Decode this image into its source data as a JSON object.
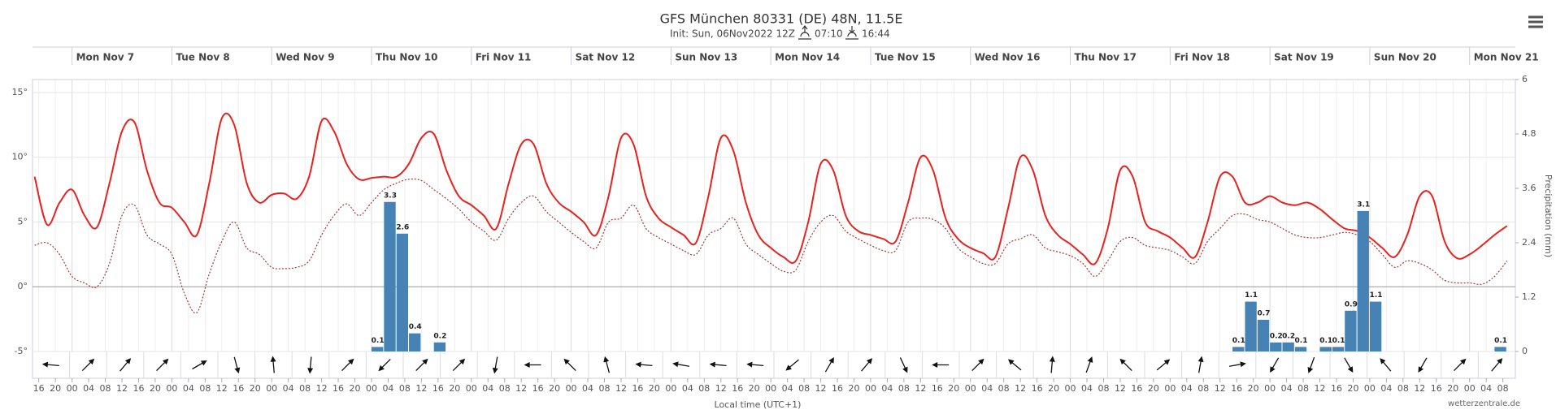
{
  "chart_data": {
    "type": "line",
    "title": "GFS München 80331 (DE) 48N, 11.5E",
    "subtitle": "Init: Sun, 06Nov2022 12Z",
    "sunrise": "07:10",
    "sunset": "16:44",
    "xlabel": "Local time (UTC+1)",
    "y2label": "Precipitation (mm)",
    "credit": "wetterzentrale.de",
    "xlim": [
      "2022-11-06T14:30",
      "2022-11-21T11:00"
    ],
    "ylim": [
      -5,
      16
    ],
    "yticks": [
      {
        "value": -5,
        "label": "-5°"
      },
      {
        "value": 0,
        "label": "0°"
      },
      {
        "value": 5,
        "label": "5°"
      },
      {
        "value": 10,
        "label": "10°"
      },
      {
        "value": 15,
        "label": "15°"
      }
    ],
    "y2lim": [
      0,
      6
    ],
    "y2ticks": [
      0,
      1.2,
      2.4,
      3.6,
      4.8,
      6
    ],
    "grid": true,
    "day_ticks": [
      {
        "value": "2022-11-07T00:00",
        "label": "Mon Nov 7"
      },
      {
        "value": "2022-11-08T00:00",
        "label": "Tue Nov 8"
      },
      {
        "value": "2022-11-09T00:00",
        "label": "Wed Nov 9"
      },
      {
        "value": "2022-11-10T00:00",
        "label": "Thu Nov 10"
      },
      {
        "value": "2022-11-11T00:00",
        "label": "Fri Nov 11"
      },
      {
        "value": "2022-11-12T00:00",
        "label": "Sat Nov 12"
      },
      {
        "value": "2022-11-13T00:00",
        "label": "Sun Nov 13"
      },
      {
        "value": "2022-11-14T00:00",
        "label": "Mon Nov 14"
      },
      {
        "value": "2022-11-15T00:00",
        "label": "Tue Nov 15"
      },
      {
        "value": "2022-11-16T00:00",
        "label": "Wed Nov 16"
      },
      {
        "value": "2022-11-17T00:00",
        "label": "Thu Nov 17"
      },
      {
        "value": "2022-11-18T00:00",
        "label": "Fri Nov 18"
      },
      {
        "value": "2022-11-19T00:00",
        "label": "Sat Nov 19"
      },
      {
        "value": "2022-11-20T00:00",
        "label": "Sun Nov 20"
      },
      {
        "value": "2022-11-21T00:00",
        "label": "Mon Nov 21"
      }
    ],
    "xticks": [
      {
        "value": "2022-11-06T16:00",
        "label": "16"
      },
      {
        "value": "2022-11-06T20:00",
        "label": "20"
      },
      {
        "value": "2022-11-07T00:00",
        "label": "00"
      },
      {
        "value": "2022-11-07T04:00",
        "label": "04"
      },
      {
        "value": "2022-11-07T08:00",
        "label": "08"
      },
      {
        "value": "2022-11-07T12:00",
        "label": "12"
      },
      {
        "value": "2022-11-07T16:00",
        "label": "16"
      },
      {
        "value": "2022-11-07T20:00",
        "label": "20"
      },
      {
        "value": "2022-11-08T00:00",
        "label": "00"
      },
      {
        "value": "2022-11-08T04:00",
        "label": "04"
      },
      {
        "value": "2022-11-08T08:00",
        "label": "08"
      },
      {
        "value": "2022-11-08T12:00",
        "label": "12"
      },
      {
        "value": "2022-11-08T16:00",
        "label": "16"
      },
      {
        "value": "2022-11-08T20:00",
        "label": "20"
      },
      {
        "value": "2022-11-09T00:00",
        "label": "00"
      },
      {
        "value": "2022-11-09T04:00",
        "label": "04"
      },
      {
        "value": "2022-11-09T08:00",
        "label": "08"
      },
      {
        "value": "2022-11-09T12:00",
        "label": "12"
      },
      {
        "value": "2022-11-09T16:00",
        "label": "16"
      },
      {
        "value": "2022-11-09T20:00",
        "label": "20"
      },
      {
        "value": "2022-11-10T00:00",
        "label": "00"
      },
      {
        "value": "2022-11-10T04:00",
        "label": "04"
      },
      {
        "value": "2022-11-10T08:00",
        "label": "08"
      },
      {
        "value": "2022-11-10T12:00",
        "label": "12"
      },
      {
        "value": "2022-11-10T16:00",
        "label": "16"
      },
      {
        "value": "2022-11-10T20:00",
        "label": "20"
      },
      {
        "value": "2022-11-11T00:00",
        "label": "00"
      },
      {
        "value": "2022-11-11T04:00",
        "label": "04"
      },
      {
        "value": "2022-11-11T08:00",
        "label": "08"
      },
      {
        "value": "2022-11-11T12:00",
        "label": "12"
      },
      {
        "value": "2022-11-11T16:00",
        "label": "16"
      },
      {
        "value": "2022-11-11T20:00",
        "label": "20"
      },
      {
        "value": "2022-11-12T00:00",
        "label": "00"
      },
      {
        "value": "2022-11-12T04:00",
        "label": "04"
      },
      {
        "value": "2022-11-12T08:00",
        "label": "08"
      },
      {
        "value": "2022-11-12T12:00",
        "label": "12"
      },
      {
        "value": "2022-11-12T16:00",
        "label": "16"
      },
      {
        "value": "2022-11-12T20:00",
        "label": "20"
      },
      {
        "value": "2022-11-13T00:00",
        "label": "00"
      },
      {
        "value": "2022-11-13T04:00",
        "label": "04"
      },
      {
        "value": "2022-11-13T08:00",
        "label": "08"
      },
      {
        "value": "2022-11-13T12:00",
        "label": "12"
      },
      {
        "value": "2022-11-13T16:00",
        "label": "16"
      },
      {
        "value": "2022-11-13T20:00",
        "label": "20"
      },
      {
        "value": "2022-11-14T00:00",
        "label": "00"
      },
      {
        "value": "2022-11-14T04:00",
        "label": "04"
      },
      {
        "value": "2022-11-14T08:00",
        "label": "08"
      },
      {
        "value": "2022-11-14T12:00",
        "label": "12"
      },
      {
        "value": "2022-11-14T16:00",
        "label": "16"
      },
      {
        "value": "2022-11-14T20:00",
        "label": "20"
      },
      {
        "value": "2022-11-15T00:00",
        "label": "00"
      },
      {
        "value": "2022-11-15T04:00",
        "label": "04"
      },
      {
        "value": "2022-11-15T08:00",
        "label": "08"
      },
      {
        "value": "2022-11-15T12:00",
        "label": "12"
      },
      {
        "value": "2022-11-15T16:00",
        "label": "16"
      },
      {
        "value": "2022-11-15T20:00",
        "label": "20"
      },
      {
        "value": "2022-11-16T00:00",
        "label": "00"
      },
      {
        "value": "2022-11-16T04:00",
        "label": "04"
      },
      {
        "value": "2022-11-16T08:00",
        "label": "08"
      },
      {
        "value": "2022-11-16T12:00",
        "label": "12"
      },
      {
        "value": "2022-11-16T16:00",
        "label": "16"
      },
      {
        "value": "2022-11-16T20:00",
        "label": "20"
      },
      {
        "value": "2022-11-17T00:00",
        "label": "00"
      },
      {
        "value": "2022-11-17T04:00",
        "label": "04"
      },
      {
        "value": "2022-11-17T08:00",
        "label": "08"
      },
      {
        "value": "2022-11-17T12:00",
        "label": "12"
      },
      {
        "value": "2022-11-17T16:00",
        "label": "16"
      },
      {
        "value": "2022-11-17T20:00",
        "label": "20"
      },
      {
        "value": "2022-11-18T00:00",
        "label": "00"
      },
      {
        "value": "2022-11-18T04:00",
        "label": "04"
      },
      {
        "value": "2022-11-18T08:00",
        "label": "08"
      },
      {
        "value": "2022-11-18T12:00",
        "label": "12"
      },
      {
        "value": "2022-11-18T16:00",
        "label": "16"
      },
      {
        "value": "2022-11-18T20:00",
        "label": "20"
      },
      {
        "value": "2022-11-19T00:00",
        "label": "00"
      },
      {
        "value": "2022-11-19T04:00",
        "label": "04"
      },
      {
        "value": "2022-11-19T08:00",
        "label": "08"
      },
      {
        "value": "2022-11-19T12:00",
        "label": "12"
      },
      {
        "value": "2022-11-19T16:00",
        "label": "16"
      },
      {
        "value": "2022-11-19T20:00",
        "label": "20"
      },
      {
        "value": "2022-11-20T00:00",
        "label": "00"
      },
      {
        "value": "2022-11-20T04:00",
        "label": "04"
      },
      {
        "value": "2022-11-20T08:00",
        "label": "08"
      },
      {
        "value": "2022-11-20T12:00",
        "label": "12"
      },
      {
        "value": "2022-11-20T16:00",
        "label": "16"
      },
      {
        "value": "2022-11-20T20:00",
        "label": "20"
      },
      {
        "value": "2022-11-21T00:00",
        "label": "00"
      },
      {
        "value": "2022-11-21T04:00",
        "label": "04"
      },
      {
        "value": "2022-11-21T08:00",
        "label": "08"
      }
    ],
    "x": [
      "2022-11-06T15:00",
      "2022-11-06T18:00",
      "2022-11-06T21:00",
      "2022-11-07T00:00",
      "2022-11-07T03:00",
      "2022-11-07T06:00",
      "2022-11-07T09:00",
      "2022-11-07T12:00",
      "2022-11-07T15:00",
      "2022-11-07T18:00",
      "2022-11-07T21:00",
      "2022-11-08T00:00",
      "2022-11-08T03:00",
      "2022-11-08T06:00",
      "2022-11-08T09:00",
      "2022-11-08T12:00",
      "2022-11-08T15:00",
      "2022-11-08T18:00",
      "2022-11-08T21:00",
      "2022-11-09T00:00",
      "2022-11-09T03:00",
      "2022-11-09T06:00",
      "2022-11-09T09:00",
      "2022-11-09T12:00",
      "2022-11-09T15:00",
      "2022-11-09T18:00",
      "2022-11-09T21:00",
      "2022-11-10T00:00",
      "2022-11-10T03:00",
      "2022-11-10T06:00",
      "2022-11-10T09:00",
      "2022-11-10T12:00",
      "2022-11-10T15:00",
      "2022-11-10T18:00",
      "2022-11-10T21:00",
      "2022-11-11T00:00",
      "2022-11-11T03:00",
      "2022-11-11T06:00",
      "2022-11-11T09:00",
      "2022-11-11T12:00",
      "2022-11-11T15:00",
      "2022-11-11T18:00",
      "2022-11-11T21:00",
      "2022-11-12T00:00",
      "2022-11-12T03:00",
      "2022-11-12T06:00",
      "2022-11-12T09:00",
      "2022-11-12T12:00",
      "2022-11-12T15:00",
      "2022-11-12T18:00",
      "2022-11-12T21:00",
      "2022-11-13T00:00",
      "2022-11-13T03:00",
      "2022-11-13T06:00",
      "2022-11-13T09:00",
      "2022-11-13T12:00",
      "2022-11-13T15:00",
      "2022-11-13T18:00",
      "2022-11-13T21:00",
      "2022-11-14T00:00",
      "2022-11-14T03:00",
      "2022-11-14T06:00",
      "2022-11-14T09:00",
      "2022-11-14T12:00",
      "2022-11-14T15:00",
      "2022-11-14T18:00",
      "2022-11-14T21:00",
      "2022-11-15T00:00",
      "2022-11-15T03:00",
      "2022-11-15T06:00",
      "2022-11-15T09:00",
      "2022-11-15T12:00",
      "2022-11-15T15:00",
      "2022-11-15T18:00",
      "2022-11-15T21:00",
      "2022-11-16T00:00",
      "2022-11-16T03:00",
      "2022-11-16T06:00",
      "2022-11-16T09:00",
      "2022-11-16T12:00",
      "2022-11-16T15:00",
      "2022-11-16T18:00",
      "2022-11-16T21:00",
      "2022-11-17T00:00",
      "2022-11-17T03:00",
      "2022-11-17T06:00",
      "2022-11-17T09:00",
      "2022-11-17T12:00",
      "2022-11-17T15:00",
      "2022-11-17T18:00",
      "2022-11-17T21:00",
      "2022-11-18T00:00",
      "2022-11-18T03:00",
      "2022-11-18T06:00",
      "2022-11-18T09:00",
      "2022-11-18T12:00",
      "2022-11-18T15:00",
      "2022-11-18T18:00",
      "2022-11-18T21:00",
      "2022-11-19T00:00",
      "2022-11-19T03:00",
      "2022-11-19T06:00",
      "2022-11-19T09:00",
      "2022-11-19T12:00",
      "2022-11-19T15:00",
      "2022-11-19T18:00",
      "2022-11-19T21:00",
      "2022-11-20T00:00",
      "2022-11-20T03:00",
      "2022-11-20T06:00",
      "2022-11-20T09:00",
      "2022-11-20T12:00",
      "2022-11-20T15:00",
      "2022-11-20T18:00",
      "2022-11-20T21:00",
      "2022-11-21T00:00",
      "2022-11-21T03:00",
      "2022-11-21T06:00",
      "2022-11-21T09:00"
    ],
    "series": [
      {
        "type": "line",
        "color": "#e8221e",
        "style": "solid",
        "values": [
          8.5,
          4.8,
          6.5,
          7.5,
          5.5,
          4.6,
          8,
          12,
          12.7,
          9,
          6.5,
          6.1,
          5,
          4,
          8,
          13,
          12.5,
          8,
          6.5,
          7.1,
          7.2,
          6.8,
          8.5,
          12.8,
          12,
          9.5,
          8.3,
          8.4,
          8.5,
          8.5,
          9.5,
          11.5,
          11.8,
          9,
          7,
          6.3,
          5.5,
          4.5,
          8,
          11,
          11,
          8,
          6.5,
          5.8,
          5,
          4,
          7,
          11.5,
          11,
          7,
          5.3,
          4.6,
          4,
          3.4,
          7,
          11.5,
          10.5,
          6.5,
          4,
          3,
          2.3,
          2,
          5,
          9.5,
          9,
          5.5,
          4.3,
          4,
          3.7,
          3.5,
          6.5,
          10,
          9,
          5.3,
          3.7,
          3,
          2.6,
          2.3,
          6,
          10,
          9,
          5.5,
          4,
          3.3,
          2.5,
          1.8,
          4.5,
          9,
          8.5,
          5,
          4.3,
          3.8,
          3,
          2.3,
          5,
          8.5,
          8.5,
          6.5,
          6.5,
          7,
          6.5,
          6.3,
          6.5,
          6,
          5.2,
          4.5,
          4.3,
          3.8,
          3,
          2.3,
          4,
          7,
          7,
          3.5,
          2.2,
          2.5,
          3.2,
          4,
          4.7
        ]
      },
      {
        "type": "line",
        "color": "#a0393b",
        "style": "dotted",
        "values": [
          3.2,
          3.4,
          2.5,
          0.8,
          0.3,
          0,
          1.8,
          5.5,
          6.3,
          4,
          3.3,
          2.5,
          -0.5,
          -2,
          1,
          3.5,
          5,
          3,
          2.5,
          1.5,
          1.4,
          1.5,
          2,
          4,
          5.5,
          6.4,
          5.5,
          6.5,
          7.5,
          8,
          8.3,
          8.2,
          7.5,
          6.8,
          6,
          5,
          4.3,
          3.6,
          5.3,
          6.5,
          7,
          5.8,
          5,
          4.2,
          3.5,
          3,
          5,
          5.3,
          6.3,
          4.5,
          3.8,
          3.3,
          2.8,
          2.5,
          4,
          4.5,
          5.3,
          3.3,
          2.5,
          1.8,
          1.2,
          1.3,
          3.5,
          5,
          5.5,
          4.3,
          3.7,
          3.2,
          2.8,
          2.8,
          5,
          5.3,
          5.2,
          4.5,
          3,
          2.3,
          1.8,
          1.8,
          3.3,
          3.7,
          4,
          3,
          2.7,
          2.4,
          1.8,
          0.8,
          2,
          3.5,
          3.8,
          3.2,
          3,
          2.8,
          2.3,
          1.8,
          3.5,
          4.5,
          5.5,
          5.6,
          5.2,
          5,
          4.5,
          4,
          3.8,
          3.8,
          4,
          4.2,
          4,
          3.5,
          2.5,
          1.5,
          2,
          1.8,
          1.3,
          0.5,
          0.3,
          0.3,
          0.2,
          0.8,
          2
        ]
      },
      {
        "type": "bar",
        "axis": "y2",
        "color": "#4682b4",
        "x": [
          "2022-11-10T00:00",
          "2022-11-10T03:00",
          "2022-11-10T06:00",
          "2022-11-10T09:00",
          "2022-11-10T15:00",
          "2022-11-18T15:00",
          "2022-11-18T18:00",
          "2022-11-18T21:00",
          "2022-11-19T00:00",
          "2022-11-19T03:00",
          "2022-11-19T06:00",
          "2022-11-19T12:00",
          "2022-11-19T15:00",
          "2022-11-19T18:00",
          "2022-11-19T21:00",
          "2022-11-20T00:00",
          "2022-11-21T06:00"
        ],
        "values": [
          0.1,
          3.3,
          2.6,
          0.4,
          0.2,
          0.1,
          1.1,
          0.7,
          0.2,
          0.2,
          0.1,
          0.1,
          0.1,
          0.9,
          3.1,
          1.1,
          0.1
        ]
      }
    ],
    "wind_direction": [
      275,
      45,
      40,
      45,
      60,
      165,
      355,
      185,
      45,
      225,
      45,
      45,
      190,
      270,
      315,
      345,
      275,
      280,
      275,
      275,
      230,
      30,
      40,
      155,
      270,
      45,
      310,
      5,
      20,
      315,
      50,
      10,
      80,
      210,
      200,
      150,
      320,
      210,
      45,
      40
    ]
  }
}
